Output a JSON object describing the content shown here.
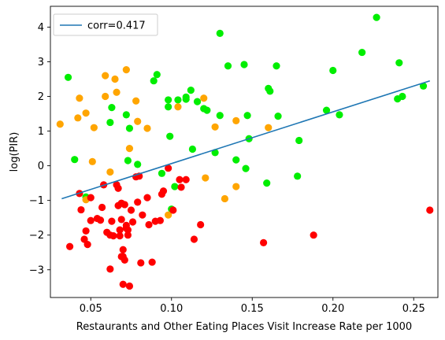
{
  "chart_data": {
    "type": "scatter",
    "xlabel": "Restaurants and Other Eating Places Visit Increase Rate per 1000",
    "ylabel": "log(PIR)",
    "xlim": [
      0.025,
      0.265
    ],
    "ylim": [
      -3.8,
      4.6
    ],
    "xticks": [
      0.05,
      0.1,
      0.15,
      0.2,
      0.25
    ],
    "xtick_labels": [
      "0.05",
      "0.10",
      "0.15",
      "0.20",
      "0.25"
    ],
    "yticks": [
      -3,
      -2,
      -1,
      0,
      1,
      2,
      3,
      4
    ],
    "ytick_labels": [
      "−3",
      "−2",
      "−1",
      "0",
      "1",
      "2",
      "3",
      "4"
    ],
    "grid": false,
    "legend_position": "top-left",
    "regression_line": {
      "label": "corr=0.417",
      "color": "#1f77b4",
      "x": [
        0.032,
        0.26
      ],
      "y": [
        -0.95,
        2.45
      ]
    },
    "series": [
      {
        "color": "#00ee00",
        "points": [
          [
            0.036,
            2.55
          ],
          [
            0.04,
            0.18
          ],
          [
            0.047,
            -0.9
          ],
          [
            0.062,
            1.25
          ],
          [
            0.063,
            1.68
          ],
          [
            0.072,
            1.47
          ],
          [
            0.074,
            1.08
          ],
          [
            0.073,
            0.15
          ],
          [
            0.079,
            0.04
          ],
          [
            0.089,
            2.45
          ],
          [
            0.091,
            2.63
          ],
          [
            0.094,
            -0.22
          ],
          [
            0.098,
            1.9
          ],
          [
            0.098,
            1.7
          ],
          [
            0.099,
            0.85
          ],
          [
            0.1,
            -1.25
          ],
          [
            0.102,
            -0.6
          ],
          [
            0.104,
            1.9
          ],
          [
            0.109,
            1.98
          ],
          [
            0.109,
            1.92
          ],
          [
            0.112,
            2.18
          ],
          [
            0.113,
            0.48
          ],
          [
            0.116,
            1.85
          ],
          [
            0.12,
            1.65
          ],
          [
            0.122,
            1.6
          ],
          [
            0.127,
            0.38
          ],
          [
            0.13,
            3.82
          ],
          [
            0.13,
            1.45
          ],
          [
            0.135,
            2.88
          ],
          [
            0.14,
            0.17
          ],
          [
            0.145,
            2.92
          ],
          [
            0.146,
            -0.08
          ],
          [
            0.147,
            1.45
          ],
          [
            0.148,
            0.78
          ],
          [
            0.159,
            -0.5
          ],
          [
            0.16,
            2.23
          ],
          [
            0.161,
            2.15
          ],
          [
            0.165,
            2.88
          ],
          [
            0.166,
            1.43
          ],
          [
            0.178,
            -0.3
          ],
          [
            0.179,
            0.73
          ],
          [
            0.196,
            1.6
          ],
          [
            0.2,
            2.75
          ],
          [
            0.204,
            1.47
          ],
          [
            0.218,
            3.27
          ],
          [
            0.227,
            4.28
          ],
          [
            0.24,
            1.93
          ],
          [
            0.241,
            2.97
          ],
          [
            0.243,
            2.0
          ],
          [
            0.256,
            2.3
          ]
        ]
      },
      {
        "color": "#ffa500",
        "points": [
          [
            0.031,
            1.2
          ],
          [
            0.042,
            1.38
          ],
          [
            0.043,
            1.95
          ],
          [
            0.047,
            1.52
          ],
          [
            0.051,
            0.12
          ],
          [
            0.052,
            1.1
          ],
          [
            0.059,
            2.6
          ],
          [
            0.059,
            2.0
          ],
          [
            0.062,
            -0.18
          ],
          [
            0.065,
            2.5
          ],
          [
            0.066,
            2.12
          ],
          [
            0.072,
            2.77
          ],
          [
            0.074,
            0.5
          ],
          [
            0.078,
            1.87
          ],
          [
            0.079,
            1.28
          ],
          [
            0.085,
            1.08
          ],
          [
            0.098,
            -1.42
          ],
          [
            0.104,
            1.7
          ],
          [
            0.12,
            1.95
          ],
          [
            0.121,
            -0.35
          ],
          [
            0.127,
            1.12
          ],
          [
            0.133,
            -0.95
          ],
          [
            0.14,
            1.3
          ],
          [
            0.14,
            -0.6
          ],
          [
            0.16,
            1.1
          ],
          [
            0.047,
            -0.98
          ]
        ]
      },
      {
        "color": "#ff0000",
        "points": [
          [
            0.037,
            -2.33
          ],
          [
            0.043,
            -0.8
          ],
          [
            0.044,
            -1.27
          ],
          [
            0.046,
            -2.12
          ],
          [
            0.047,
            -1.88
          ],
          [
            0.048,
            -2.27
          ],
          [
            0.05,
            -1.58
          ],
          [
            0.05,
            -0.92
          ],
          [
            0.054,
            -1.52
          ],
          [
            0.056,
            -1.57
          ],
          [
            0.057,
            -1.2
          ],
          [
            0.058,
            -0.55
          ],
          [
            0.06,
            -1.92
          ],
          [
            0.062,
            -2.98
          ],
          [
            0.062,
            -2.0
          ],
          [
            0.063,
            -1.6
          ],
          [
            0.064,
            -2.02
          ],
          [
            0.066,
            -0.55
          ],
          [
            0.067,
            -0.65
          ],
          [
            0.067,
            -1.15
          ],
          [
            0.068,
            -1.85
          ],
          [
            0.068,
            -2.02
          ],
          [
            0.069,
            -1.08
          ],
          [
            0.069,
            -2.62
          ],
          [
            0.069,
            -1.55
          ],
          [
            0.07,
            -2.42
          ],
          [
            0.07,
            -3.42
          ],
          [
            0.07,
            -2.62
          ],
          [
            0.071,
            -2.72
          ],
          [
            0.071,
            -1.12
          ],
          [
            0.072,
            -1.8
          ],
          [
            0.072,
            -1.72
          ],
          [
            0.073,
            -2.0
          ],
          [
            0.073,
            -1.85
          ],
          [
            0.074,
            -3.47
          ],
          [
            0.075,
            -1.28
          ],
          [
            0.076,
            -1.62
          ],
          [
            0.078,
            -0.32
          ],
          [
            0.079,
            -1.05
          ],
          [
            0.08,
            -0.3
          ],
          [
            0.081,
            -2.8
          ],
          [
            0.082,
            -1.42
          ],
          [
            0.085,
            -0.92
          ],
          [
            0.086,
            -1.7
          ],
          [
            0.088,
            -2.78
          ],
          [
            0.09,
            -1.6
          ],
          [
            0.093,
            -1.58
          ],
          [
            0.094,
            -0.82
          ],
          [
            0.095,
            -0.73
          ],
          [
            0.098,
            -0.07
          ],
          [
            0.101,
            -1.28
          ],
          [
            0.105,
            -0.4
          ],
          [
            0.106,
            -0.62
          ],
          [
            0.109,
            -0.4
          ],
          [
            0.114,
            -2.12
          ],
          [
            0.118,
            -1.7
          ],
          [
            0.157,
            -2.22
          ],
          [
            0.188,
            -2.0
          ],
          [
            0.26,
            -1.28
          ]
        ]
      }
    ]
  }
}
